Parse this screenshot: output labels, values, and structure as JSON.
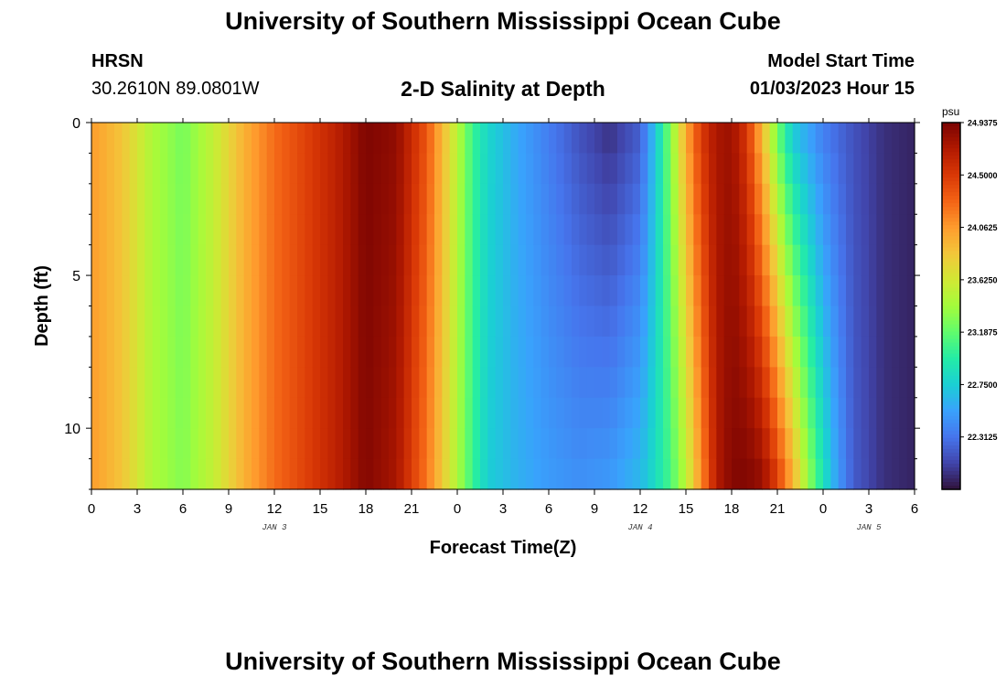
{
  "header": {
    "title": "University of Southern Mississippi Ocean Cube",
    "station": "HRSN",
    "coords": "30.2610N  89.0801W",
    "subtitle": "2-D Salinity at Depth",
    "start_label": "Model Start Time",
    "start_value": "01/03/2023 Hour 15"
  },
  "footer": {
    "title": "University of Southern Mississippi Ocean Cube"
  },
  "chart_data": {
    "type": "heatmap",
    "title": "2-D Salinity at Depth",
    "xlabel": "Forecast Time(Z)",
    "ylabel": "Depth (ft)",
    "x_tick_labels": [
      "0",
      "3",
      "6",
      "9",
      "12",
      "15",
      "18",
      "21",
      "0",
      "3",
      "6",
      "9",
      "12",
      "15",
      "18",
      "21",
      "0",
      "3",
      "6"
    ],
    "date_labels": [
      {
        "label": "JAN 3",
        "hours_since_jan3_00z": 12
      },
      {
        "label": "JAN 4",
        "hours_since_jan3_00z": 36
      },
      {
        "label": "JAN 5",
        "hours_since_jan3_00z": 51
      }
    ],
    "xlim_hours_since_jan3_00z": [
      0,
      54
    ],
    "ylim_depth_ft": [
      0,
      12
    ],
    "y_ticks": [
      0,
      5,
      10
    ],
    "depth_levels_ft": [
      0,
      1,
      2,
      3,
      4,
      5,
      6,
      7,
      8,
      9,
      10,
      11,
      12
    ],
    "colorbar": {
      "label": "psu",
      "range": [
        21.875,
        24.9375
      ],
      "tick_values": [
        24.9375,
        24.5,
        24.0625,
        23.625,
        23.1875,
        22.75,
        22.3125
      ],
      "tick_labels": [
        "24.9375",
        "24.5000",
        "24.0625",
        "23.6250",
        "23.1875",
        "22.7500",
        "22.3125"
      ],
      "palette": [
        "#30123b",
        "#4145ab",
        "#4675ed",
        "#39a2fc",
        "#1bcfd4",
        "#24eca6",
        "#61fc6c",
        "#a4fc3b",
        "#d1e834",
        "#f3c63a",
        "#fe9b2d",
        "#f36315",
        "#d93806",
        "#b11901",
        "#7a0402"
      ]
    },
    "surface_salinity_by_hour": [
      {
        "hour": 0,
        "psu": 24.05
      },
      {
        "hour": 2,
        "psu": 23.85
      },
      {
        "hour": 4,
        "psu": 23.45
      },
      {
        "hour": 6,
        "psu": 23.25
      },
      {
        "hour": 8,
        "psu": 23.55
      },
      {
        "hour": 10,
        "psu": 23.95
      },
      {
        "hour": 12,
        "psu": 24.25
      },
      {
        "hour": 14,
        "psu": 24.45
      },
      {
        "hour": 16,
        "psu": 24.65
      },
      {
        "hour": 18,
        "psu": 24.92
      },
      {
        "hour": 20,
        "psu": 24.85
      },
      {
        "hour": 22,
        "psu": 24.35
      },
      {
        "hour": 24,
        "psu": 23.5
      },
      {
        "hour": 25,
        "psu": 23.05
      },
      {
        "hour": 26,
        "psu": 22.8
      },
      {
        "hour": 28,
        "psu": 22.55
      },
      {
        "hour": 30,
        "psu": 22.35
      },
      {
        "hour": 32,
        "psu": 22.15
      },
      {
        "hour": 34,
        "psu": 22.0
      },
      {
        "hour": 36,
        "psu": 22.2
      },
      {
        "hour": 37,
        "psu": 22.7
      },
      {
        "hour": 38,
        "psu": 23.3
      },
      {
        "hour": 39,
        "psu": 24.0
      },
      {
        "hour": 40,
        "psu": 24.5
      },
      {
        "hour": 41,
        "psu": 24.75
      },
      {
        "hour": 42,
        "psu": 24.8
      },
      {
        "hour": 43,
        "psu": 24.5
      },
      {
        "hour": 44,
        "psu": 23.9
      },
      {
        "hour": 45,
        "psu": 23.2
      },
      {
        "hour": 46,
        "psu": 22.7
      },
      {
        "hour": 48,
        "psu": 22.35
      },
      {
        "hour": 50,
        "psu": 22.15
      },
      {
        "hour": 52,
        "psu": 22.0
      },
      {
        "hour": 54,
        "psu": 21.95
      }
    ],
    "bottom_salinity_by_hour": [
      {
        "hour": 0,
        "psu": 24.05
      },
      {
        "hour": 2,
        "psu": 23.85
      },
      {
        "hour": 4,
        "psu": 23.45
      },
      {
        "hour": 6,
        "psu": 23.3
      },
      {
        "hour": 8,
        "psu": 23.55
      },
      {
        "hour": 10,
        "psu": 23.95
      },
      {
        "hour": 12,
        "psu": 24.25
      },
      {
        "hour": 14,
        "psu": 24.45
      },
      {
        "hour": 16,
        "psu": 24.65
      },
      {
        "hour": 18,
        "psu": 24.9
      },
      {
        "hour": 20,
        "psu": 24.75
      },
      {
        "hour": 22,
        "psu": 24.2
      },
      {
        "hour": 24,
        "psu": 23.45
      },
      {
        "hour": 25,
        "psu": 23.05
      },
      {
        "hour": 26,
        "psu": 22.75
      },
      {
        "hour": 28,
        "psu": 22.6
      },
      {
        "hour": 30,
        "psu": 22.5
      },
      {
        "hour": 32,
        "psu": 22.45
      },
      {
        "hour": 34,
        "psu": 22.5
      },
      {
        "hour": 36,
        "psu": 22.65
      },
      {
        "hour": 37,
        "psu": 22.85
      },
      {
        "hour": 38,
        "psu": 23.1
      },
      {
        "hour": 39,
        "psu": 23.5
      },
      {
        "hour": 40,
        "psu": 24.1
      },
      {
        "hour": 41,
        "psu": 24.7
      },
      {
        "hour": 42,
        "psu": 24.9
      },
      {
        "hour": 43,
        "psu": 24.92
      },
      {
        "hour": 44,
        "psu": 24.85
      },
      {
        "hour": 45,
        "psu": 24.5
      },
      {
        "hour": 46,
        "psu": 24.0
      },
      {
        "hour": 47,
        "psu": 23.4
      },
      {
        "hour": 48,
        "psu": 22.9
      },
      {
        "hour": 49,
        "psu": 22.5
      },
      {
        "hour": 50,
        "psu": 22.2
      },
      {
        "hour": 52,
        "psu": 22.0
      },
      {
        "hour": 54,
        "psu": 21.95
      }
    ]
  }
}
